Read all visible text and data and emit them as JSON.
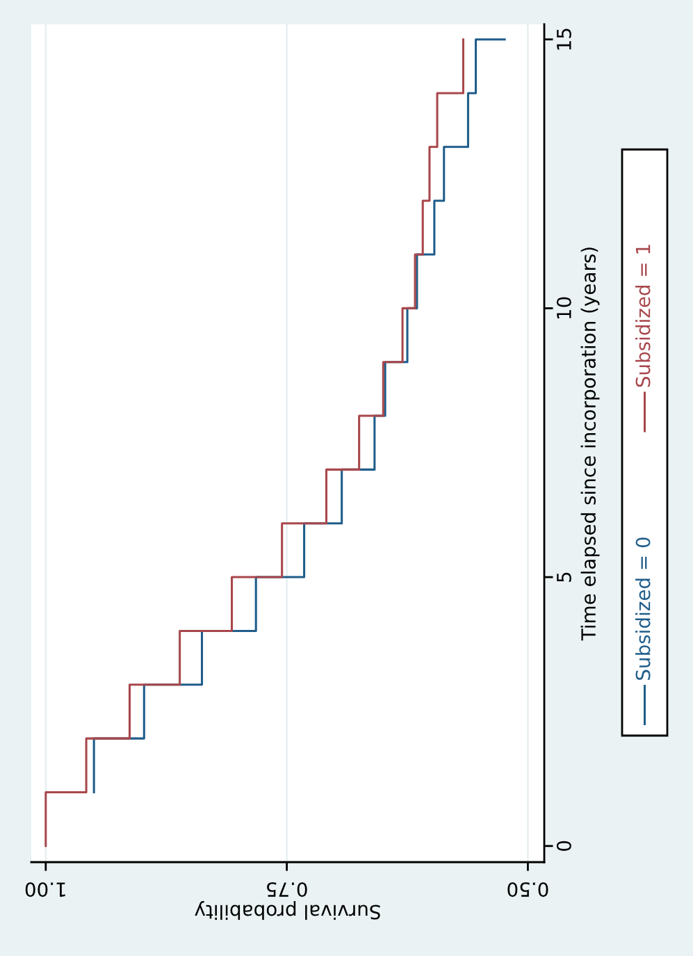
{
  "chart_data": {
    "type": "step",
    "orientation": "horizontal",
    "xlabel": "Survival probability",
    "ylabel": "Time elapsed since incorporation (years)",
    "xlim": [
      1.015,
      0.483
    ],
    "xticks": [
      {
        "value": 1.0,
        "label": "1.00"
      },
      {
        "value": 0.75,
        "label": "0.75"
      },
      {
        "value": 0.5,
        "label": "0.50"
      }
    ],
    "ylim": [
      -0.3,
      15.28
    ],
    "yticks": [
      0,
      5,
      10,
      15
    ],
    "grid": "x",
    "legend": "right",
    "series": [
      {
        "name": "Subsidized = 0",
        "color": "#1f5d8a",
        "x": [
          1,
          2,
          3,
          4,
          5,
          6,
          7,
          8,
          9,
          10,
          11,
          12,
          13,
          14,
          15
        ],
        "values": [
          0.95,
          0.898,
          0.838,
          0.782,
          0.732,
          0.693,
          0.659,
          0.648,
          0.625,
          0.615,
          0.597,
          0.587,
          0.562,
          0.554,
          0.524
        ]
      },
      {
        "name": "Subsidized = 1",
        "color": "#a8474c",
        "x": [
          0,
          1,
          2,
          3,
          4,
          5,
          6,
          7,
          8,
          9,
          10,
          11,
          12,
          13,
          14,
          15
        ],
        "values": [
          1.0,
          0.958,
          0.913,
          0.861,
          0.807,
          0.755,
          0.709,
          0.675,
          0.65,
          0.63,
          0.617,
          0.609,
          0.602,
          0.594,
          0.567,
          0.567
        ]
      }
    ]
  }
}
